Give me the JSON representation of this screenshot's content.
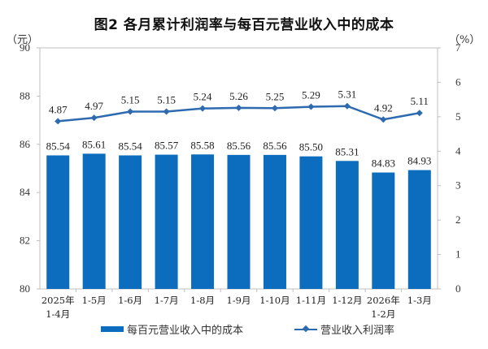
{
  "title": "图2 各月累计利润率与每百元营业收入中的成本",
  "left_unit": "（元）",
  "right_unit": "（%）",
  "legend": {
    "bar_label": "每百元营业收入中的成本",
    "line_label": "营业收入利润率"
  },
  "colors": {
    "bar": "#0C6DBE",
    "line": "#2E6AB0",
    "axis": "#BFBFBF"
  },
  "chart_data": {
    "type": "bar+line",
    "title": "图2 各月累计利润率与每百元营业收入中的成本",
    "categories": [
      "2025年 1-4月",
      "1-5月",
      "1-6月",
      "1-7月",
      "1-8月",
      "1-9月",
      "1-10月",
      "1-11月",
      "1-12月",
      "2026年 1-2月",
      "1-3月"
    ],
    "category_lines": [
      [
        "2025年",
        "1-4月"
      ],
      [
        "1-5月"
      ],
      [
        "1-6月"
      ],
      [
        "1-7月"
      ],
      [
        "1-8月"
      ],
      [
        "1-9月"
      ],
      [
        "1-10月"
      ],
      [
        "1-11月"
      ],
      [
        "1-12月"
      ],
      [
        "2026年",
        "1-2月"
      ],
      [
        "1-3月"
      ]
    ],
    "series": [
      {
        "name": "每百元营业收入中的成本",
        "type": "bar",
        "axis": "left",
        "unit": "元",
        "values": [
          85.54,
          85.61,
          85.54,
          85.57,
          85.58,
          85.56,
          85.56,
          85.5,
          85.31,
          84.83,
          84.93
        ]
      },
      {
        "name": "营业收入利润率",
        "type": "line",
        "axis": "right",
        "unit": "%",
        "values": [
          4.87,
          4.97,
          5.15,
          5.15,
          5.24,
          5.26,
          5.25,
          5.29,
          5.31,
          4.92,
          5.11
        ]
      }
    ],
    "left_axis": {
      "label": "元",
      "ylim": [
        80,
        90
      ],
      "ticks": [
        80,
        82,
        84,
        86,
        88,
        90
      ]
    },
    "right_axis": {
      "label": "%",
      "ylim": [
        0,
        7
      ],
      "ticks": [
        0,
        1,
        2,
        3,
        4,
        5,
        6,
        7
      ]
    },
    "legend_position": "bottom",
    "grid": false
  }
}
